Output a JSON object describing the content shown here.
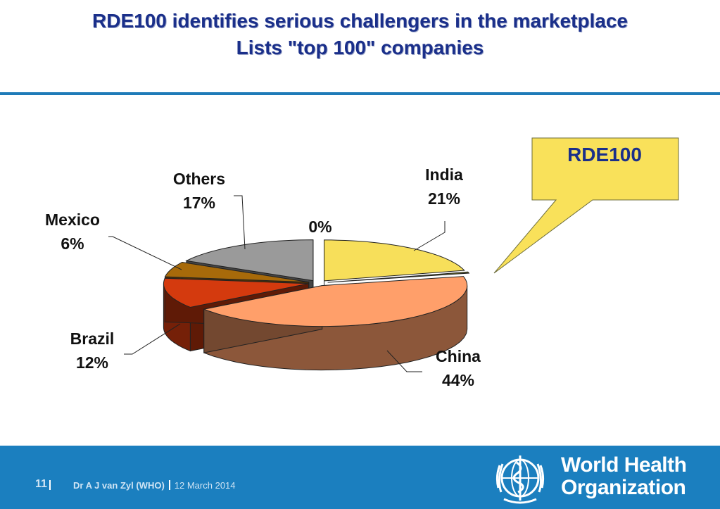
{
  "slide": {
    "title_line1": "RDE100 identifies serious challengers in the marketplace",
    "title_line2": "Lists \"top 100\" companies",
    "callout": "RDE100"
  },
  "chart_data": {
    "type": "pie",
    "slices": [
      {
        "label": "India",
        "value_label": "21%",
        "value": 21,
        "color": "#f7df5a"
      },
      {
        "label": "",
        "value_label": "0%",
        "value": 0.5,
        "color": "#6a6a2a"
      },
      {
        "label": "China",
        "value_label": "44%",
        "value": 44,
        "color": "#ff9f6a"
      },
      {
        "label": "Brazil",
        "value_label": "12%",
        "value": 12,
        "color": "#d43a0e"
      },
      {
        "label": "Mexico",
        "value_label": "6%",
        "value": 6,
        "color": "#a76a0a"
      },
      {
        "label": "Others",
        "value_label": "17%",
        "value": 17,
        "color": "#9a9a9a"
      }
    ]
  },
  "footer": {
    "page": "11",
    "author": "Dr A J van Zyl (WHO)",
    "date": "12 March 2014",
    "org_line1": "World Health",
    "org_line2": "Organization"
  }
}
